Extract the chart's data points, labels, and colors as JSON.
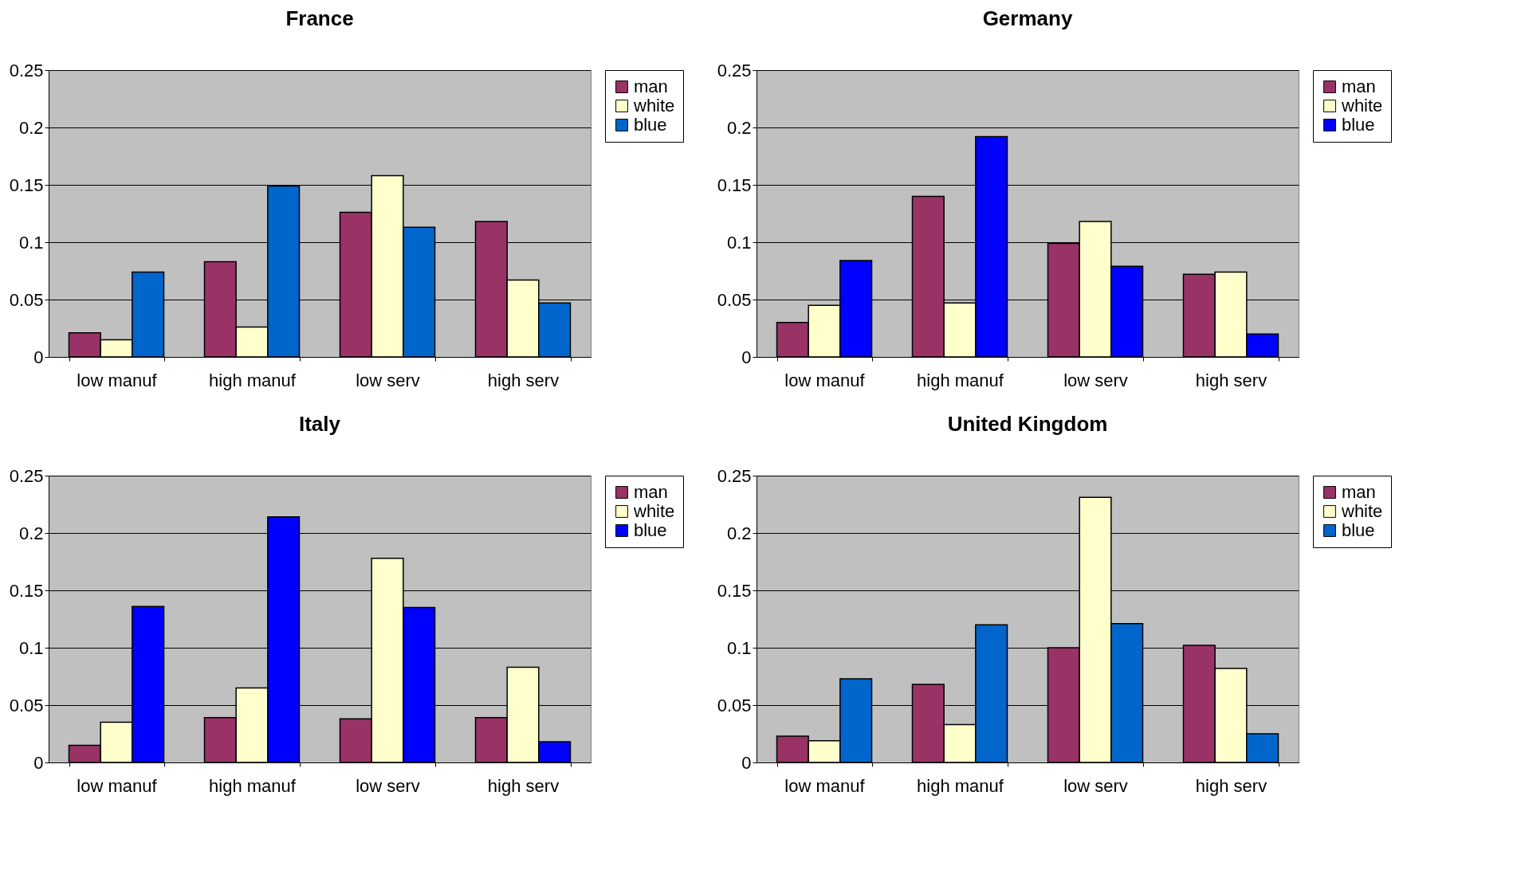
{
  "chart_data": [
    {
      "type": "bar",
      "title": "France",
      "categories": [
        "low manuf",
        "high manuf",
        "low serv",
        "high serv"
      ],
      "ylim": [
        0,
        0.25
      ],
      "yticks": [
        0,
        0.05,
        0.1,
        0.15,
        0.2,
        0.25
      ],
      "grid": "y",
      "legend": "right",
      "series": [
        {
          "name": "man",
          "color": "#993366",
          "values": [
            0.021,
            0.083,
            0.126,
            0.118
          ]
        },
        {
          "name": "white",
          "color": "#ffffcc",
          "values": [
            0.015,
            0.026,
            0.158,
            0.067
          ]
        },
        {
          "name": "blue",
          "color": "#0066cc",
          "values": [
            0.074,
            0.149,
            0.113,
            0.047
          ]
        }
      ]
    },
    {
      "type": "bar",
      "title": "Germany",
      "categories": [
        "low manuf",
        "high manuf",
        "low serv",
        "high serv"
      ],
      "ylim": [
        0,
        0.25
      ],
      "yticks": [
        0,
        0.05,
        0.1,
        0.15,
        0.2,
        0.25
      ],
      "grid": "y",
      "legend": "right",
      "series": [
        {
          "name": "man",
          "color": "#993366",
          "values": [
            0.03,
            0.14,
            0.099,
            0.072
          ]
        },
        {
          "name": "white",
          "color": "#ffffcc",
          "values": [
            0.045,
            0.047,
            0.118,
            0.074
          ]
        },
        {
          "name": "blue",
          "color": "#0000ff",
          "values": [
            0.084,
            0.192,
            0.079,
            0.02
          ]
        }
      ]
    },
    {
      "type": "bar",
      "title": "Italy",
      "categories": [
        "low manuf",
        "high manuf",
        "low serv",
        "high serv"
      ],
      "ylim": [
        0,
        0.25
      ],
      "yticks": [
        0,
        0.05,
        0.1,
        0.15,
        0.2,
        0.25
      ],
      "grid": "y",
      "legend": "right",
      "series": [
        {
          "name": "man",
          "color": "#993366",
          "values": [
            0.015,
            0.039,
            0.038,
            0.039
          ]
        },
        {
          "name": "white",
          "color": "#ffffcc",
          "values": [
            0.035,
            0.065,
            0.178,
            0.083
          ]
        },
        {
          "name": "blue",
          "color": "#0000ff",
          "values": [
            0.136,
            0.214,
            0.135,
            0.018
          ]
        }
      ]
    },
    {
      "type": "bar",
      "title": "United Kingdom",
      "categories": [
        "low manuf",
        "high manuf",
        "low serv",
        "high serv"
      ],
      "ylim": [
        0,
        0.25
      ],
      "yticks": [
        0,
        0.05,
        0.1,
        0.15,
        0.2,
        0.25
      ],
      "grid": "y",
      "legend": "right",
      "series": [
        {
          "name": "man",
          "color": "#993366",
          "values": [
            0.023,
            0.068,
            0.1,
            0.102
          ]
        },
        {
          "name": "white",
          "color": "#ffffcc",
          "values": [
            0.019,
            0.033,
            0.231,
            0.082
          ]
        },
        {
          "name": "blue",
          "color": "#0066cc",
          "values": [
            0.073,
            0.12,
            0.121,
            0.025
          ]
        }
      ]
    }
  ]
}
